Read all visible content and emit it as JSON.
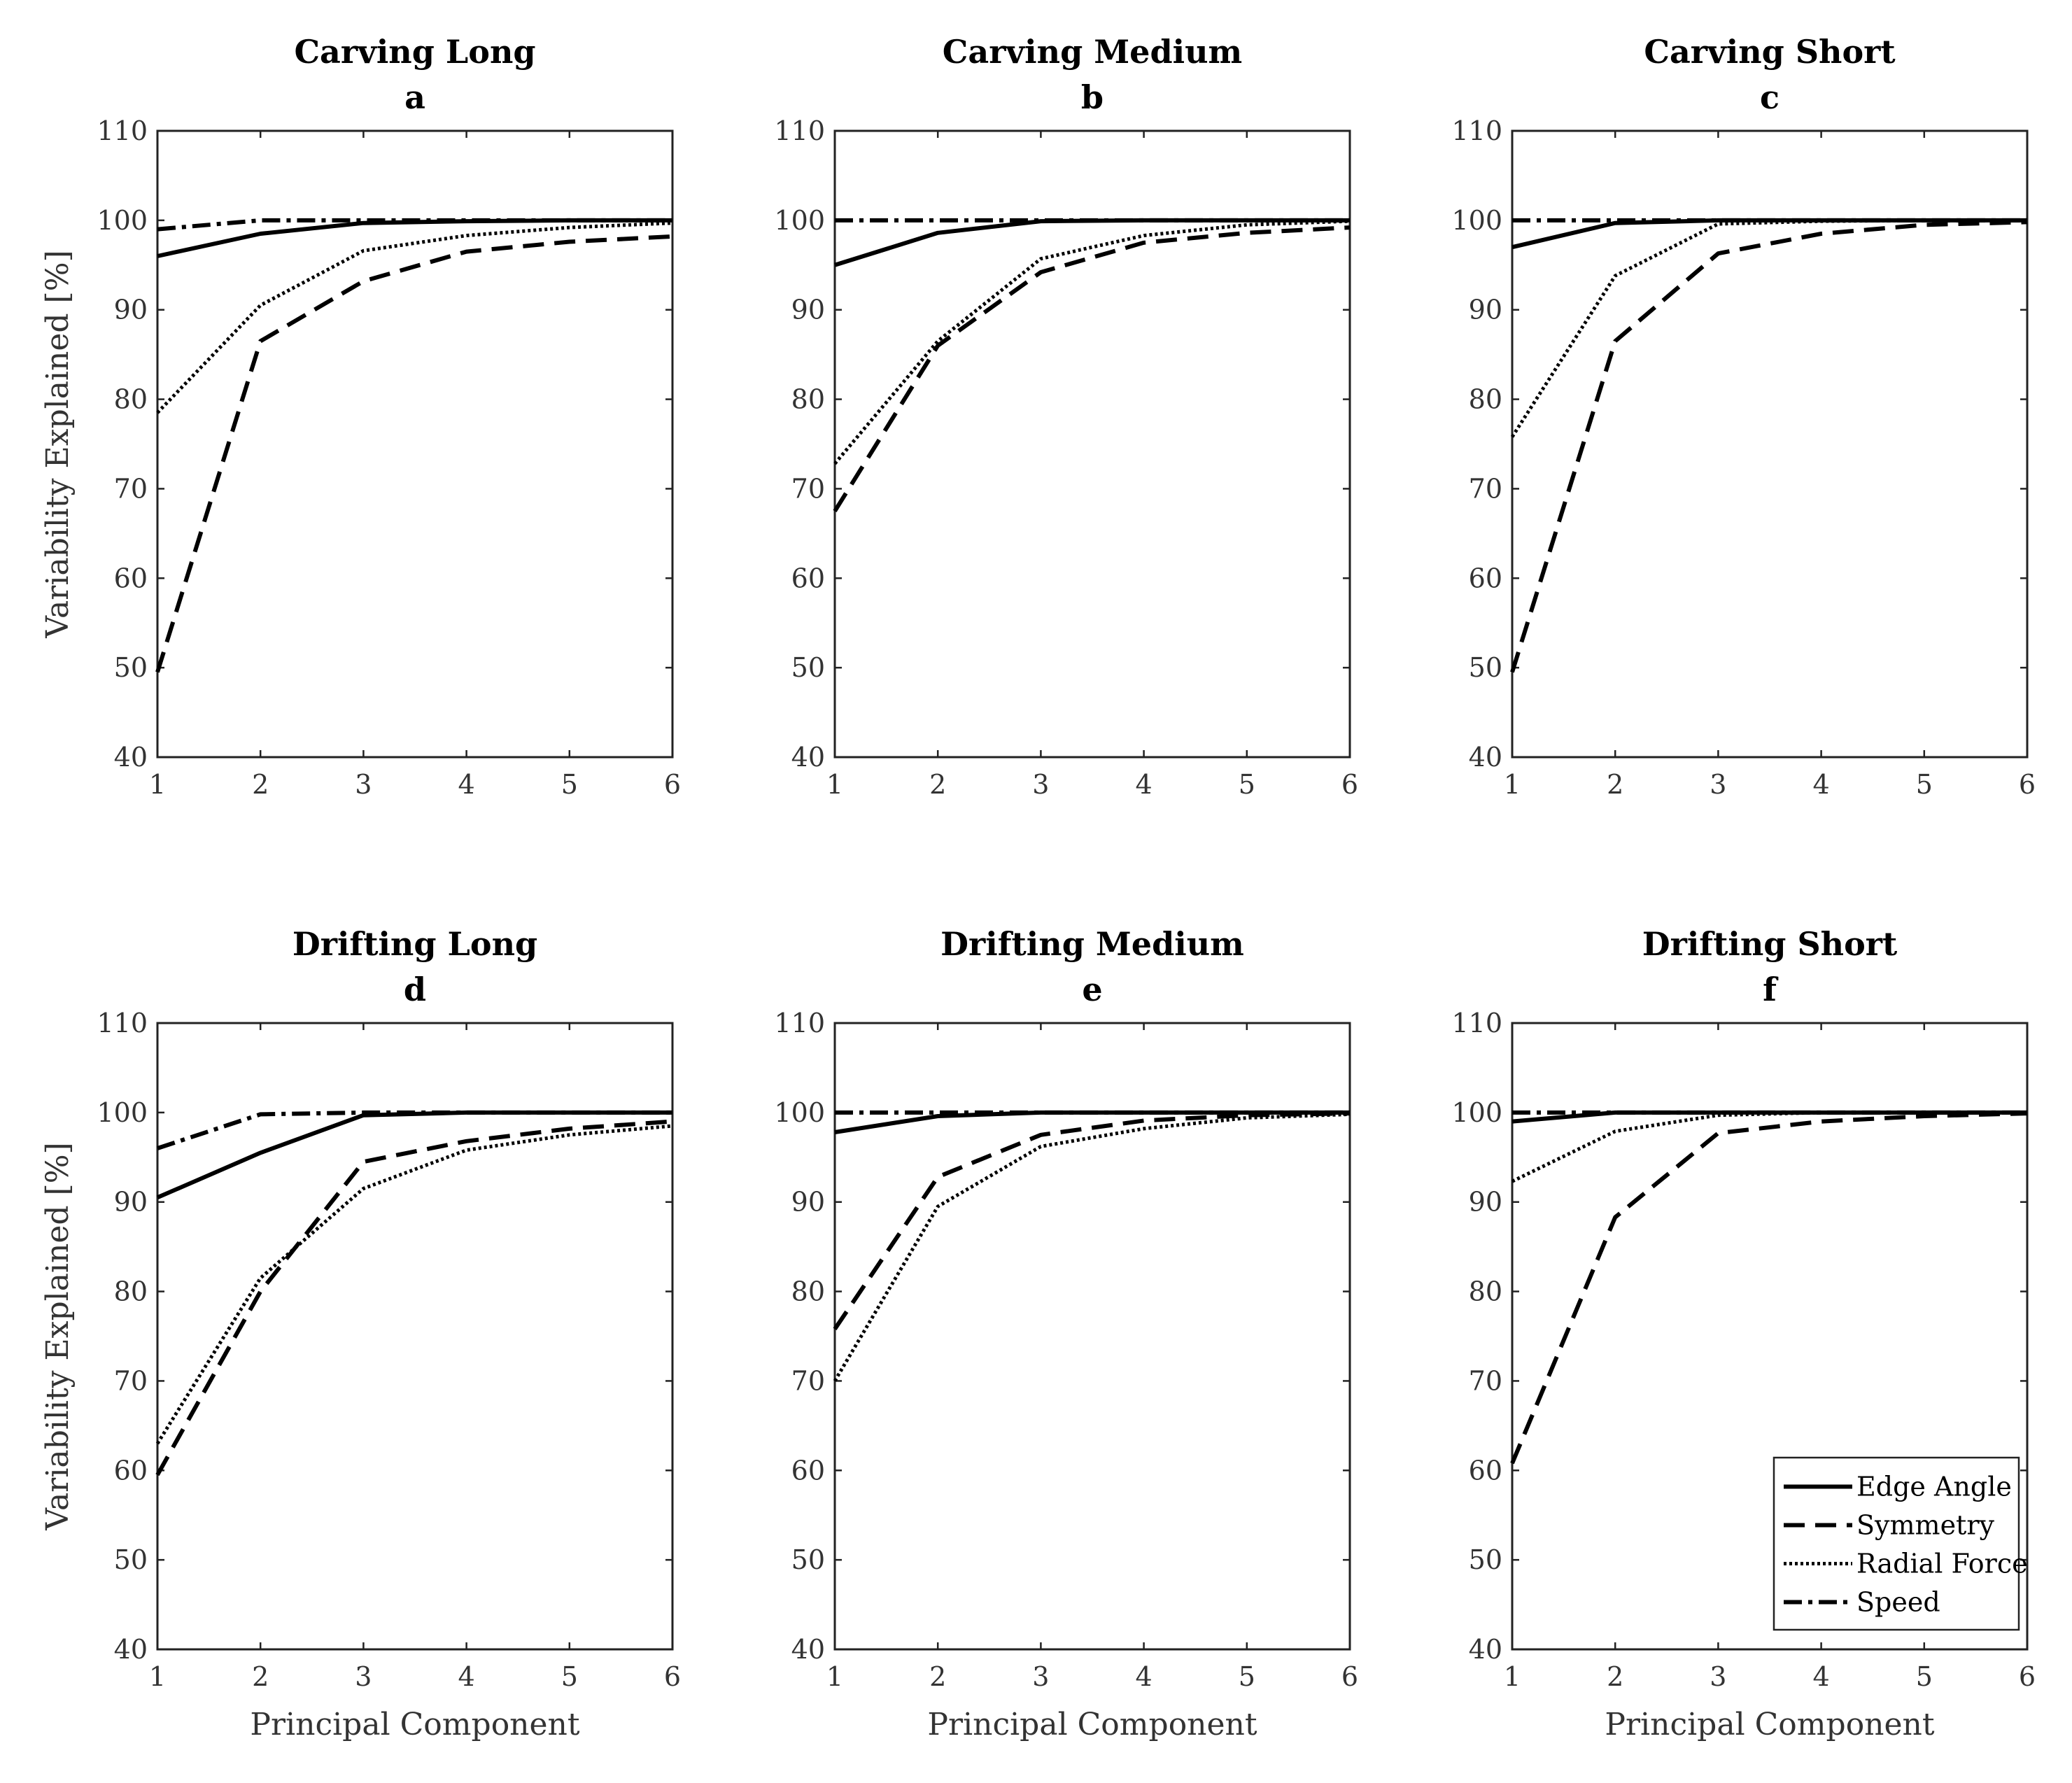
{
  "chart_data": [
    {
      "type": "line",
      "panel": "a",
      "title": "Carving Long",
      "xlabel": "",
      "ylabel": "Variability Explained [%]",
      "x": [
        1,
        2,
        3,
        4,
        5,
        6
      ],
      "xlim": [
        1,
        6
      ],
      "ylim": [
        40,
        110
      ],
      "xticks": [
        "1",
        "2",
        "3",
        "4",
        "5",
        "6"
      ],
      "yticks": [
        "40",
        "50",
        "60",
        "70",
        "80",
        "90",
        "100",
        "110"
      ],
      "series": [
        {
          "name": "Edge Angle",
          "values": [
            96.0,
            98.5,
            99.7,
            99.9,
            100.0,
            100.0
          ]
        },
        {
          "name": "Symmetry",
          "values": [
            49.5,
            86.5,
            93.2,
            96.5,
            97.6,
            98.2
          ]
        },
        {
          "name": "Radial Force",
          "values": [
            78.5,
            90.5,
            96.6,
            98.3,
            99.2,
            99.7
          ]
        },
        {
          "name": "Speed",
          "values": [
            99.0,
            100.0,
            100.0,
            100.0,
            100.0,
            100.0
          ]
        }
      ]
    },
    {
      "type": "line",
      "panel": "b",
      "title": "Carving Medium",
      "xlabel": "",
      "ylabel": "",
      "x": [
        1,
        2,
        3,
        4,
        5,
        6
      ],
      "xlim": [
        1,
        6
      ],
      "ylim": [
        40,
        110
      ],
      "xticks": [
        "1",
        "2",
        "3",
        "4",
        "5",
        "6"
      ],
      "yticks": [
        "40",
        "50",
        "60",
        "70",
        "80",
        "90",
        "100",
        "110"
      ],
      "series": [
        {
          "name": "Edge Angle",
          "values": [
            95.0,
            98.6,
            99.9,
            100.0,
            100.0,
            100.0
          ]
        },
        {
          "name": "Symmetry",
          "values": [
            67.5,
            86.0,
            94.2,
            97.5,
            98.6,
            99.2
          ]
        },
        {
          "name": "Radial Force",
          "values": [
            72.8,
            86.5,
            95.7,
            98.3,
            99.5,
            99.9
          ]
        },
        {
          "name": "Speed",
          "values": [
            100.0,
            100.0,
            100.0,
            100.0,
            100.0,
            100.0
          ]
        }
      ]
    },
    {
      "type": "line",
      "panel": "c",
      "title": "Carving Short",
      "xlabel": "",
      "ylabel": "",
      "x": [
        1,
        2,
        3,
        4,
        5,
        6
      ],
      "xlim": [
        1,
        6
      ],
      "ylim": [
        40,
        110
      ],
      "xticks": [
        "1",
        "2",
        "3",
        "4",
        "5",
        "6"
      ],
      "yticks": [
        "40",
        "50",
        "60",
        "70",
        "80",
        "90",
        "100",
        "110"
      ],
      "series": [
        {
          "name": "Edge Angle",
          "values": [
            97.0,
            99.7,
            100.0,
            100.0,
            100.0,
            100.0
          ]
        },
        {
          "name": "Symmetry",
          "values": [
            49.5,
            86.5,
            96.3,
            98.5,
            99.5,
            99.8
          ]
        },
        {
          "name": "Radial Force",
          "values": [
            75.8,
            93.8,
            99.6,
            99.9,
            100.0,
            100.0
          ]
        },
        {
          "name": "Speed",
          "values": [
            100.0,
            100.0,
            100.0,
            100.0,
            100.0,
            100.0
          ]
        }
      ]
    },
    {
      "type": "line",
      "panel": "d",
      "title": "Drifting Long",
      "xlabel": "Principal Component",
      "ylabel": "Variability Explained [%]",
      "x": [
        1,
        2,
        3,
        4,
        5,
        6
      ],
      "xlim": [
        1,
        6
      ],
      "ylim": [
        40,
        110
      ],
      "xticks": [
        "1",
        "2",
        "3",
        "4",
        "5",
        "6"
      ],
      "yticks": [
        "40",
        "50",
        "60",
        "70",
        "80",
        "90",
        "100",
        "110"
      ],
      "series": [
        {
          "name": "Edge Angle",
          "values": [
            90.5,
            95.5,
            99.7,
            100.0,
            100.0,
            100.0
          ]
        },
        {
          "name": "Symmetry",
          "values": [
            59.5,
            80.0,
            94.5,
            96.8,
            98.2,
            99.0
          ]
        },
        {
          "name": "Radial Force",
          "values": [
            63.0,
            81.5,
            91.5,
            95.8,
            97.5,
            98.5
          ]
        },
        {
          "name": "Speed",
          "values": [
            96.0,
            99.8,
            100.0,
            100.0,
            100.0,
            100.0
          ]
        }
      ]
    },
    {
      "type": "line",
      "panel": "e",
      "title": "Drifting Medium",
      "xlabel": "Principal Component",
      "ylabel": "",
      "x": [
        1,
        2,
        3,
        4,
        5,
        6
      ],
      "xlim": [
        1,
        6
      ],
      "ylim": [
        40,
        110
      ],
      "xticks": [
        "1",
        "2",
        "3",
        "4",
        "5",
        "6"
      ],
      "yticks": [
        "40",
        "50",
        "60",
        "70",
        "80",
        "90",
        "100",
        "110"
      ],
      "series": [
        {
          "name": "Edge Angle",
          "values": [
            97.8,
            99.6,
            100.0,
            100.0,
            100.0,
            100.0
          ]
        },
        {
          "name": "Symmetry",
          "values": [
            75.8,
            92.8,
            97.5,
            99.1,
            99.7,
            99.9
          ]
        },
        {
          "name": "Radial Force",
          "values": [
            70.0,
            89.5,
            96.2,
            98.2,
            99.4,
            99.8
          ]
        },
        {
          "name": "Speed",
          "values": [
            100.0,
            100.0,
            100.0,
            100.0,
            100.0,
            100.0
          ]
        }
      ]
    },
    {
      "type": "line",
      "panel": "f",
      "title": "Drifting Short",
      "xlabel": "Principal Component",
      "ylabel": "",
      "x": [
        1,
        2,
        3,
        4,
        5,
        6
      ],
      "xlim": [
        1,
        6
      ],
      "ylim": [
        40,
        110
      ],
      "xticks": [
        "1",
        "2",
        "3",
        "4",
        "5",
        "6"
      ],
      "yticks": [
        "40",
        "50",
        "60",
        "70",
        "80",
        "90",
        "100",
        "110"
      ],
      "legend": {
        "placement": "bottom-right",
        "entries": [
          "Edge Angle",
          "Symmetry",
          "Radial Force",
          "Speed"
        ]
      },
      "series": [
        {
          "name": "Edge Angle",
          "values": [
            99.0,
            100.0,
            100.0,
            100.0,
            100.0,
            100.0
          ]
        },
        {
          "name": "Symmetry",
          "values": [
            60.8,
            88.3,
            97.7,
            99.0,
            99.6,
            99.9
          ]
        },
        {
          "name": "Radial Force",
          "values": [
            92.3,
            97.9,
            99.7,
            100.0,
            100.0,
            100.0
          ]
        },
        {
          "name": "Speed",
          "values": [
            100.0,
            100.0,
            100.0,
            100.0,
            100.0,
            100.0
          ]
        }
      ]
    }
  ]
}
